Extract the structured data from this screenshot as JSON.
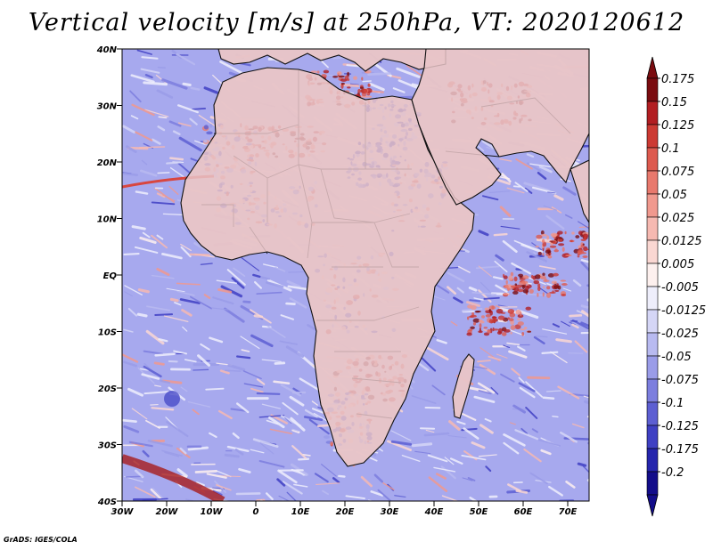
{
  "title": "Vertical velocity [m/s] at 250hPa, VT: 2020120612",
  "footer": "GrADS: IGES/COLA",
  "lat_ticks": [
    "40N",
    "30N",
    "20N",
    "10N",
    "EQ",
    "10S",
    "20S",
    "30S",
    "40S"
  ],
  "lon_ticks": [
    "30W",
    "20W",
    "10W",
    "0",
    "10E",
    "20E",
    "30E",
    "40E",
    "50E",
    "60E",
    "70E"
  ],
  "colorbar": {
    "labels": [
      "0.175",
      "0.15",
      "0.125",
      "0.1",
      "0.075",
      "0.05",
      "0.025",
      "0.0125",
      "0.005",
      "-0.005",
      "-0.0125",
      "-0.025",
      "-0.05",
      "-0.075",
      "-0.1",
      "-0.125",
      "-0.175",
      "-0.2"
    ],
    "colors": [
      "#7a0c10",
      "#b21e22",
      "#cc3a33",
      "#dd5a4f",
      "#e8796d",
      "#f0998e",
      "#f6b9b1",
      "#fad7d2",
      "#fdf0ee",
      "#eeeefb",
      "#d5d6f6",
      "#b8baf0",
      "#9a9ce8",
      "#7c7ede",
      "#5d5fd2",
      "#3f40c3",
      "#2525ad",
      "#130d8a"
    ],
    "tip_up": "#7a0c10",
    "tip_down": "#130d8a"
  },
  "colors": {
    "ocean_base": "#a7a9ee",
    "land_base": "#e8c4c8",
    "updraft": "#d8463f",
    "downdraft": "#4a4cc8",
    "coast": "#111111"
  }
}
